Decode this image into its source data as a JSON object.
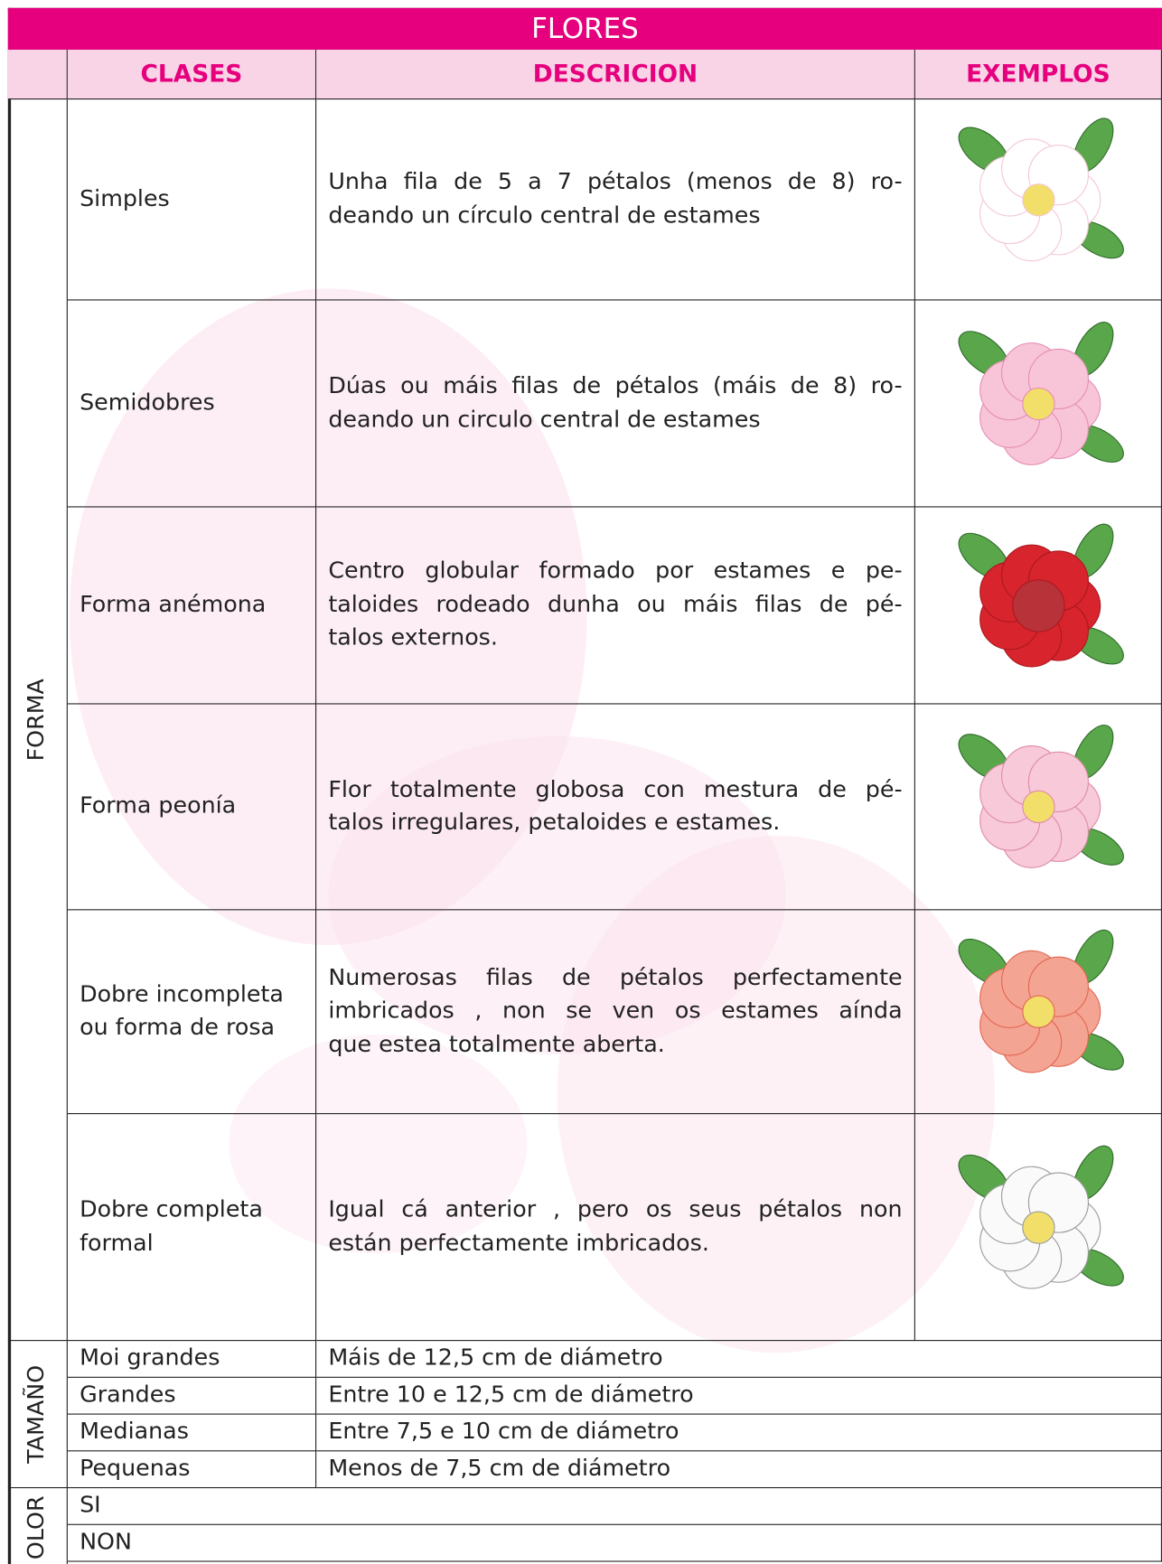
{
  "title": "FLORES",
  "header": [
    "CLASES",
    "DESCRICION",
    "EXEMPLOS"
  ],
  "groups": [
    {
      "label": "FORMA",
      "rows": [
        {
          "class": "Simples",
          "description": [
            "Unha fila de 5 a 7 pétalos (menos de 8) ro-",
            "deando un círculo central de estames"
          ]
        },
        {
          "class": "Semidobres",
          "description": [
            "Dúas ou máis filas de pétalos (máis de 8) ro-",
            "deando un circulo central de estames"
          ]
        },
        {
          "class": "Forma anémona",
          "description": [
            "Centro globular formado por estames e pe-",
            "taloides rodeado dunha ou máis filas de pé-",
            "talos externos."
          ]
        },
        {
          "class": "Forma peonía",
          "description": [
            "Flor totalmente globosa con mestura de pé-",
            "talos irregulares, petaloides e estames."
          ]
        },
        {
          "class": "Dobre incompleta ou forma de rosa",
          "description": [
            "Numerosas filas de pétalos perfectamente",
            "imbricados , non se ven os estames aínda",
            "que estea totalmente aberta."
          ]
        },
        {
          "class": "Dobre completa formal",
          "description": [
            "Igual cá anterior , pero os seus pétalos non",
            "están perfectamente imbricados."
          ]
        }
      ]
    },
    {
      "label": "TAMAÑO",
      "rows": [
        {
          "class": "Moi grandes",
          "description": [
            "Máis de 12,5 cm de diámetro"
          ]
        },
        {
          "class": "Grandes",
          "description": [
            "Entre 10 e 12,5 cm de diámetro"
          ]
        },
        {
          "class": "Medianas",
          "description": [
            "Entre 7,5 e 10 cm de diámetro"
          ]
        },
        {
          "class": "Pequenas",
          "description": [
            "Menos de 7,5 cm de diámetro"
          ]
        }
      ]
    },
    {
      "label": "OLOR",
      "rows": [
        {
          "class": "SI"
        },
        {
          "class": "NON"
        }
      ]
    }
  ]
}
